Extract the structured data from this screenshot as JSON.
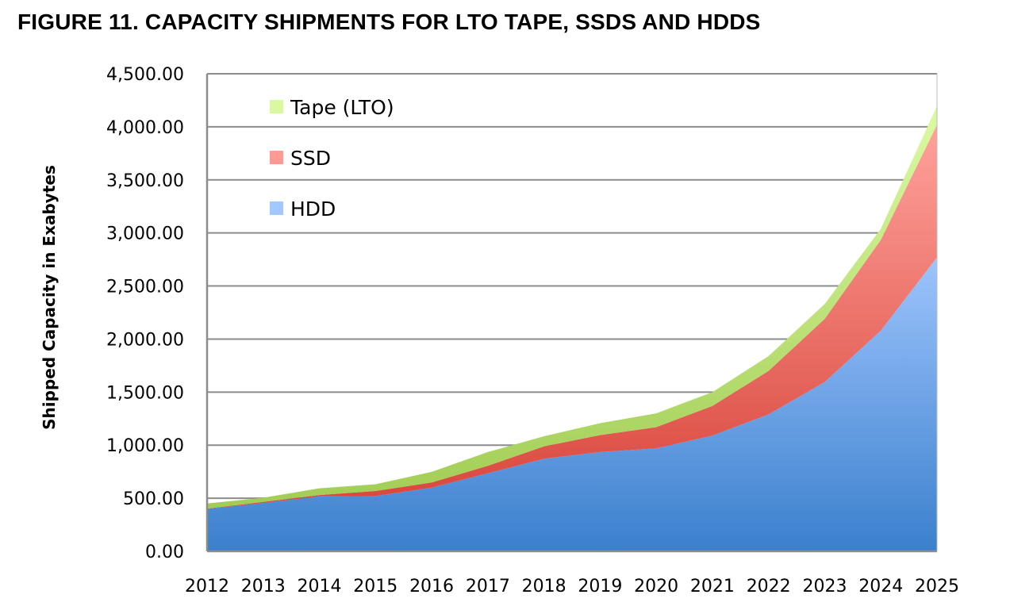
{
  "chart_data": {
    "type": "area",
    "stacked": true,
    "title": "FIGURE 11.  CAPACITY SHIPMENTS FOR LTO TAPE, SSDS AND HDDS",
    "xlabel": "",
    "ylabel": "Shipped Capacity in Exabytes",
    "ylim": [
      0,
      4500
    ],
    "yticks": [
      "0.00",
      "500.00",
      "1,000.00",
      "1,500.00",
      "2,000.00",
      "2,500.00",
      "3,000.00",
      "3,500.00",
      "4,000.00",
      "4,500.00"
    ],
    "categories": [
      "2012",
      "2013",
      "2014",
      "2015",
      "2016",
      "2017",
      "2018",
      "2019",
      "2020",
      "2021",
      "2022",
      "2023",
      "2024",
      "2025"
    ],
    "grid": true,
    "legend_position": "top-left",
    "series": [
      {
        "name": "HDD",
        "color": "#5b95e0",
        "values": [
          400,
          455,
          518,
          520,
          600,
          735,
          872,
          935,
          970,
          1090,
          1290,
          1595,
          2080,
          2770
        ]
      },
      {
        "name": "SSD",
        "color": "#e8675c",
        "values": [
          3,
          10,
          12,
          48,
          48,
          70,
          117,
          160,
          200,
          280,
          410,
          595,
          855,
          1250
        ]
      },
      {
        "name": "Tape (LTO)",
        "color": "#b5dc6a",
        "values": [
          47,
          40,
          63,
          64,
          100,
          130,
          95,
          112,
          130,
          130,
          140,
          140,
          105,
          175
        ]
      }
    ],
    "legend_order": [
      "Tape (LTO)",
      "SSD",
      "HDD"
    ]
  }
}
